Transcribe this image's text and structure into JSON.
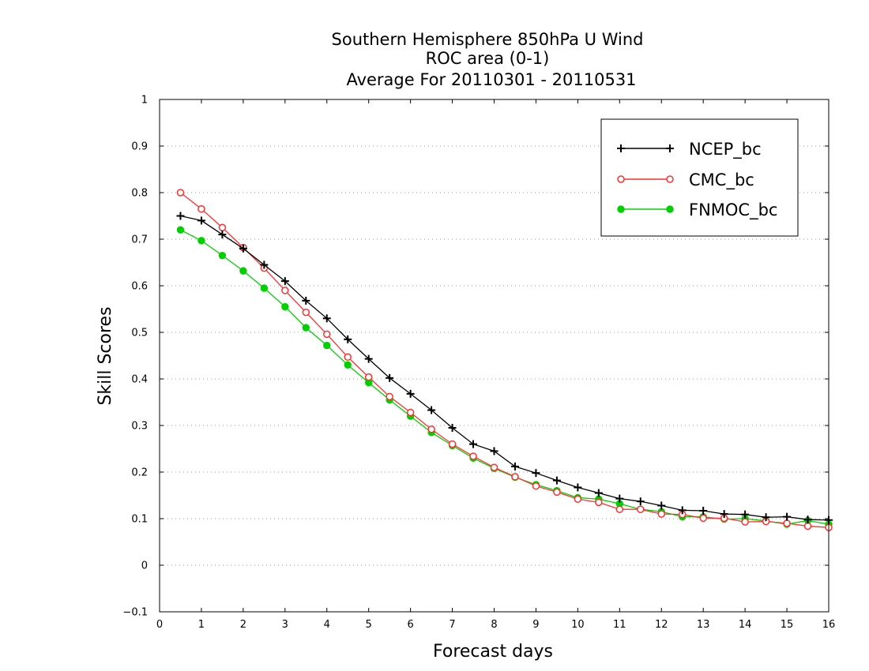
{
  "chart_data": {
    "type": "line",
    "title": "Southern Hemisphere 850hPa U Wind",
    "subtitle": "ROC area (0-1)",
    "subtitle2": "Average For 20110301 - 20110531",
    "xlabel": "Forecast days",
    "ylabel": "Skill Scores",
    "xlim": [
      0,
      16
    ],
    "ylim": [
      -0.1,
      1
    ],
    "xticks": [
      "0",
      "1",
      "2",
      "3",
      "4",
      "5",
      "6",
      "7",
      "8",
      "9",
      "10",
      "11",
      "12",
      "13",
      "14",
      "15",
      "16"
    ],
    "yticks": [
      "−0.1",
      "0",
      "0.1",
      "0.2",
      "0.3",
      "0.4",
      "0.5",
      "0.6",
      "0.7",
      "0.8",
      "0.9",
      "1"
    ],
    "grid": true,
    "legend_position": "top-right",
    "x": [
      0.5,
      1,
      1.5,
      2,
      2.5,
      3,
      3.5,
      4,
      4.5,
      5,
      5.5,
      6,
      6.5,
      7,
      7.5,
      8,
      8.5,
      9,
      9.5,
      10,
      10.5,
      11,
      11.5,
      12,
      12.5,
      13,
      13.5,
      14,
      14.5,
      15,
      15.5,
      16
    ],
    "series": [
      {
        "name": "NCEP_bc",
        "color": "#000000",
        "marker": "plus",
        "values": [
          0.75,
          0.74,
          0.71,
          0.68,
          0.645,
          0.61,
          0.568,
          0.53,
          0.485,
          0.443,
          0.402,
          0.368,
          0.333,
          0.295,
          0.26,
          0.245,
          0.212,
          0.198,
          0.182,
          0.167,
          0.155,
          0.143,
          0.137,
          0.128,
          0.118,
          0.117,
          0.11,
          0.109,
          0.103,
          0.104,
          0.098,
          0.097
        ]
      },
      {
        "name": "CMC_bc",
        "color": "#ff3030",
        "marker": "open-circle",
        "values": [
          0.8,
          0.765,
          0.725,
          0.682,
          0.638,
          0.59,
          0.543,
          0.496,
          0.447,
          0.404,
          0.362,
          0.328,
          0.292,
          0.26,
          0.234,
          0.21,
          0.19,
          0.17,
          0.157,
          0.142,
          0.135,
          0.12,
          0.12,
          0.11,
          0.109,
          0.101,
          0.101,
          0.093,
          0.094,
          0.09,
          0.084,
          0.081
        ]
      },
      {
        "name": "FNMOC_bc",
        "color": "#00d000",
        "marker": "filled-circle",
        "values": [
          0.72,
          0.697,
          0.665,
          0.632,
          0.595,
          0.555,
          0.51,
          0.472,
          0.43,
          0.392,
          0.355,
          0.32,
          0.285,
          0.257,
          0.23,
          0.208,
          0.189,
          0.173,
          0.16,
          0.145,
          0.142,
          0.132,
          0.12,
          0.115,
          0.104,
          0.104,
          0.099,
          0.1,
          0.095,
          0.088,
          0.096,
          0.088
        ]
      }
    ]
  }
}
